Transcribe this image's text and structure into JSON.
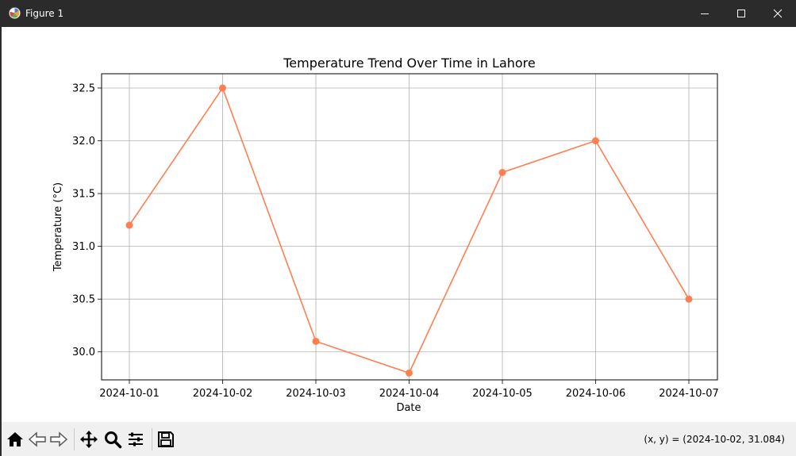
{
  "window": {
    "title": "Figure 1"
  },
  "chart_data": {
    "type": "line",
    "title": "Temperature Trend Over Time in Lahore",
    "xlabel": "Date",
    "ylabel": "Temperature (°C)",
    "categories": [
      "2024-10-01",
      "2024-10-02",
      "2024-10-03",
      "2024-10-04",
      "2024-10-05",
      "2024-10-06",
      "2024-10-07"
    ],
    "values": [
      31.2,
      32.5,
      30.1,
      29.8,
      31.7,
      32.0,
      30.5
    ],
    "yticks": [
      "30.0",
      "30.5",
      "31.0",
      "31.5",
      "32.0",
      "32.5"
    ],
    "grid": true,
    "marker": "circle",
    "color": "#ff7f50"
  },
  "statusbar": {
    "coords": "(x, y) = (2024-10-02, 31.084)"
  },
  "toolbar": {
    "buttons": [
      "home-icon",
      "back-icon",
      "forward-icon",
      "pan-icon",
      "zoom-icon",
      "configure-subplots-icon",
      "save-icon"
    ]
  }
}
